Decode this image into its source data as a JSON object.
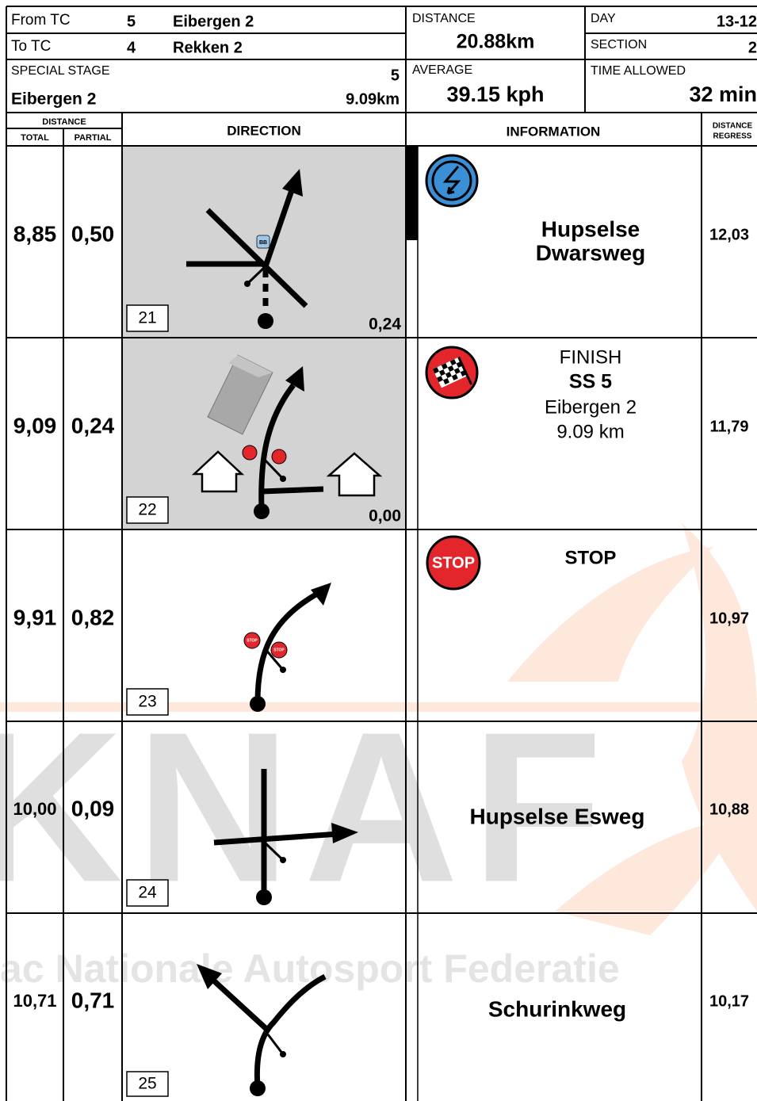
{
  "header": {
    "from_tc": {
      "label": "From TC",
      "number": "5",
      "name": "Eibergen 2"
    },
    "to_tc": {
      "label": "To TC",
      "number": "4",
      "name": "Rekken 2"
    },
    "special_stage": {
      "label": "SPECIAL STAGE",
      "number": "5",
      "name": "Eibergen 2",
      "length": "9.09km"
    },
    "distance": {
      "label": "DISTANCE",
      "value": "20.88km"
    },
    "average": {
      "label": "AVERAGE",
      "value": "39.15 kph"
    },
    "day": {
      "label": "DAY",
      "value": "13-12"
    },
    "section": {
      "label": "SECTION",
      "value": "2"
    },
    "time_allowed": {
      "label": "TIME ALLOWED",
      "value": "32 min"
    }
  },
  "columns": {
    "distance": "DISTANCE",
    "total": "TOTAL",
    "partial": "PARTIAL",
    "direction": "DIRECTION",
    "information": "INFORMATION",
    "regress": [
      "DISTANCE",
      "REGRESS"
    ]
  },
  "rows": [
    {
      "total": "8,85",
      "partial": "0,50",
      "number": "21",
      "sub_distance": "0,24",
      "info": [
        "Hupselse",
        "Dwarsweg"
      ],
      "regress": "12,03",
      "signs": [
        "BB"
      ]
    },
    {
      "total": "9,09",
      "partial": "0,24",
      "number": "22",
      "sub_distance": "0,00",
      "info": [
        "FINISH",
        "SS 5",
        "Eibergen 2",
        "9.09 km"
      ],
      "regress": "11,79"
    },
    {
      "total": "9,91",
      "partial": "0,82",
      "number": "23",
      "icon_label": "STOP",
      "info": [
        "STOP"
      ],
      "regress": "10,97",
      "signs": [
        "STOP",
        "STOP"
      ]
    },
    {
      "total": "10,00",
      "partial": "0,09",
      "number": "24",
      "info": [
        "Hupselse Esweg"
      ],
      "regress": "10,88"
    },
    {
      "total": "10,71",
      "partial": "0,71",
      "number": "25",
      "info": [
        "Schurinkweg"
      ],
      "regress": "10,17"
    }
  ],
  "watermark": {
    "logo": "KNAF",
    "text": "ac Nationale Autosport Federatie"
  }
}
